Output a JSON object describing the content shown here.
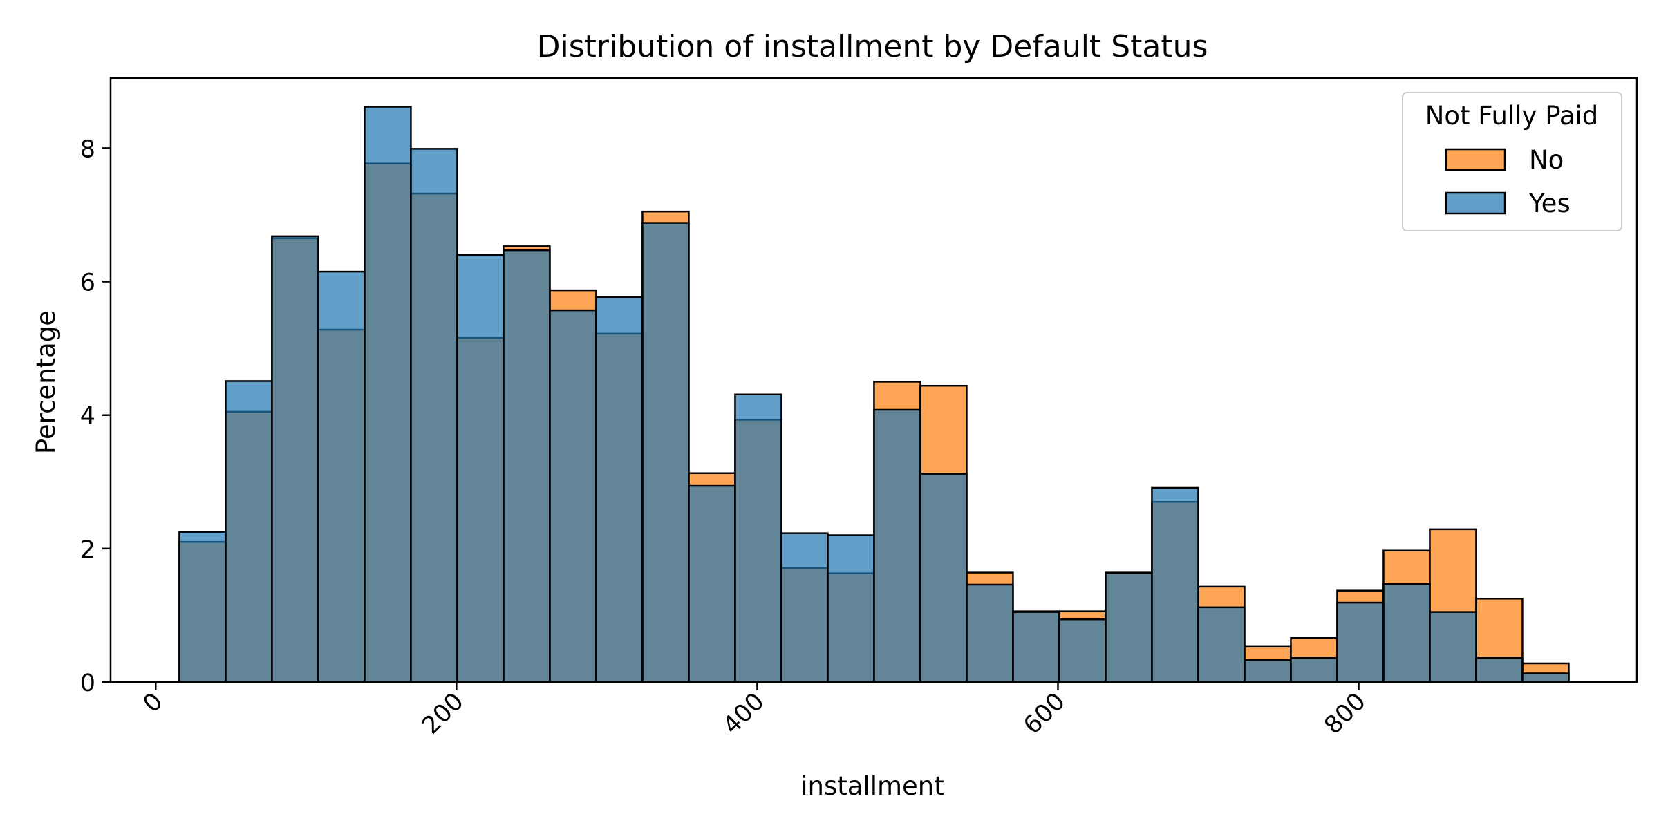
{
  "chart_data": {
    "type": "histogram",
    "title": "Distribution of installment by Default Status",
    "xlabel": "installment",
    "ylabel": "Percentage",
    "xlim": [
      -30,
      985
    ],
    "ylim": [
      0,
      9.05
    ],
    "xticks": [
      0,
      200,
      400,
      600,
      800
    ],
    "yticks": [
      0,
      2,
      4,
      6,
      8
    ],
    "grid": false,
    "legend": {
      "title": "Not Fully Paid",
      "placement": "top-right"
    },
    "bin_edges": [
      15.7,
      46.5,
      77.3,
      108.1,
      138.9,
      169.7,
      200.5,
      231.3,
      262.1,
      292.9,
      323.7,
      354.5,
      385.3,
      416.1,
      446.9,
      477.7,
      508.5,
      539.3,
      570.1,
      600.9,
      631.7,
      662.5,
      693.3,
      724.1,
      754.9,
      785.7,
      816.5,
      847.3,
      878.1,
      908.9,
      939.7
    ],
    "series": [
      {
        "name": "No",
        "color": "#ff7f0e",
        "values": [
          2.1,
          4.05,
          6.65,
          5.28,
          7.77,
          7.32,
          5.16,
          6.53,
          5.87,
          5.22,
          7.05,
          3.13,
          3.93,
          1.71,
          1.63,
          4.5,
          4.44,
          1.64,
          1.06,
          1.06,
          1.64,
          2.7,
          1.43,
          0.53,
          0.66,
          1.37,
          1.97,
          2.29,
          1.25,
          0.28
        ]
      },
      {
        "name": "Yes",
        "color": "#1f77b4",
        "values": [
          2.25,
          4.51,
          6.68,
          6.15,
          8.62,
          7.99,
          6.4,
          6.47,
          5.57,
          5.77,
          6.88,
          2.94,
          4.31,
          2.23,
          2.2,
          4.08,
          3.12,
          1.46,
          1.05,
          0.94,
          1.63,
          2.91,
          1.12,
          0.33,
          0.36,
          1.19,
          1.47,
          1.05,
          0.36,
          0.13
        ]
      }
    ]
  }
}
